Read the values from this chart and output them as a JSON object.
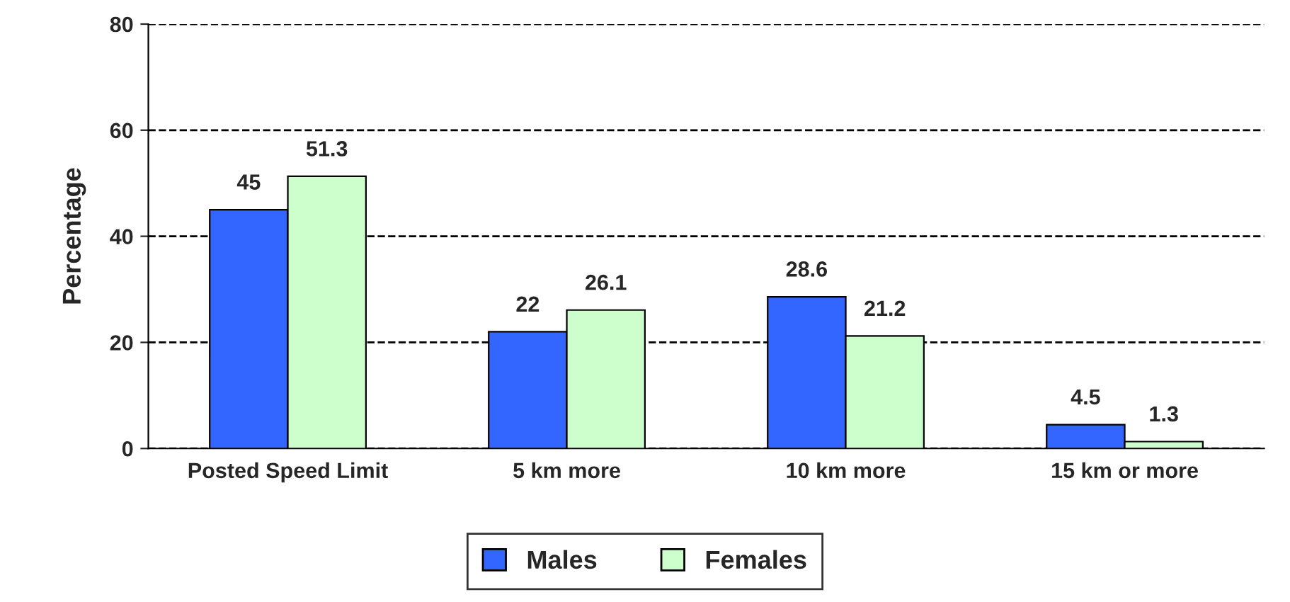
{
  "chart_data": {
    "type": "bar",
    "ylabel": "Percentage",
    "categories": [
      "Posted Speed Limit",
      "5 km more",
      "10 km more",
      "15 km or more"
    ],
    "series": [
      {
        "name": "Males",
        "color": "#3366ff",
        "values": [
          45,
          22,
          28.6,
          4.5
        ]
      },
      {
        "name": "Females",
        "color": "#ccffcc",
        "values": [
          51.3,
          26.1,
          21.2,
          1.3
        ]
      }
    ],
    "ylim": [
      0,
      80
    ],
    "yticks": [
      0,
      20,
      40,
      60,
      80
    ],
    "grid": "y",
    "legend": "bottom",
    "data_labels": true
  }
}
